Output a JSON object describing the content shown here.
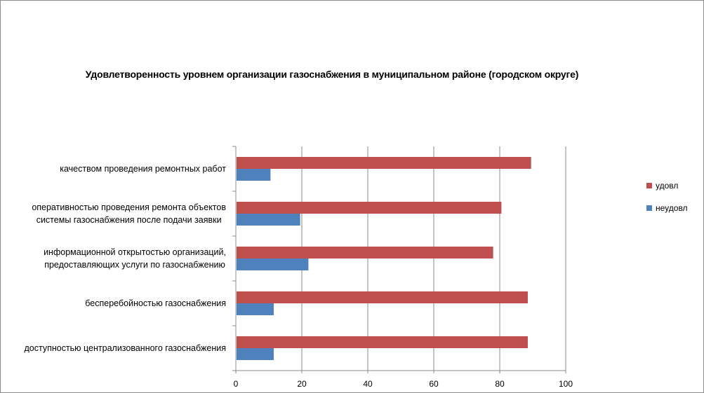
{
  "chart_data": {
    "type": "bar",
    "orientation": "horizontal",
    "title": "Удовлетворенность уровнем организации газоснабжения в муниципальном районе (городском округе)",
    "xlabel": "",
    "ylabel": "",
    "xlim": [
      0,
      100
    ],
    "x_ticks": [
      "0",
      "20",
      "40",
      "60",
      "80",
      "100"
    ],
    "grid": "vertical",
    "legend": "right",
    "categories": [
      [
        "качеством проведения ремонтных работ"
      ],
      [
        "оперативностью проведения ремонта объектов",
        "системы газоснабжения после подачи заявки"
      ],
      [
        "информационной открытостью организаций,",
        "предоставляющих услуги по газоснабжению"
      ],
      [
        "бесперебойностью газоснабжения"
      ],
      [
        "доступностью централизованного газоснабжения"
      ]
    ],
    "series": [
      {
        "name": "удовл",
        "color": "#c0504d",
        "values": [
          89.5,
          80.5,
          78,
          88.5,
          88.5
        ]
      },
      {
        "name": "неудовл",
        "color": "#4f81bd",
        "values": [
          10.5,
          19.5,
          22,
          11.5,
          11.5
        ]
      }
    ]
  }
}
